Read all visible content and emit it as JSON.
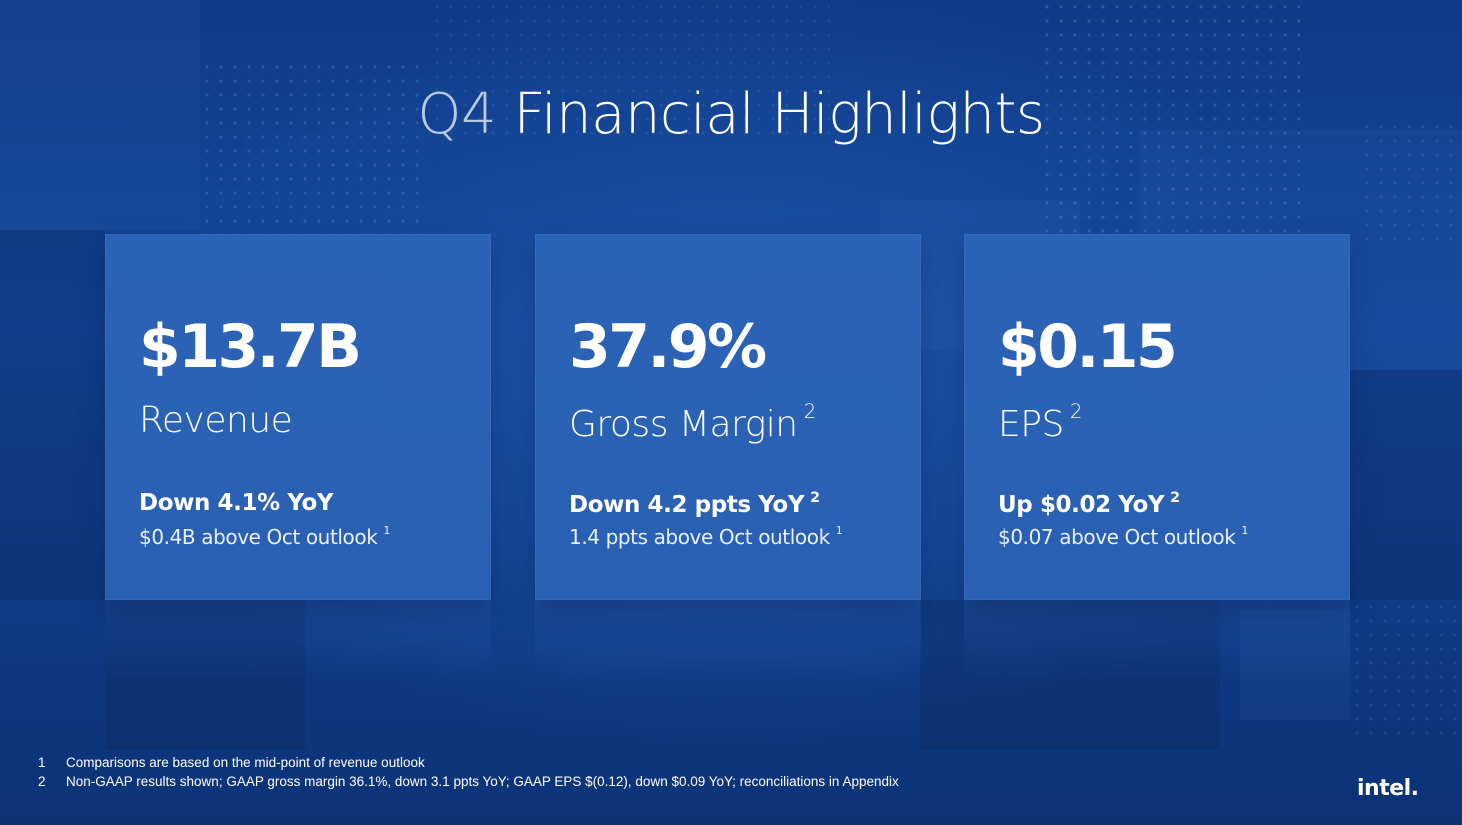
{
  "slide": {
    "title_prefix": "Q4",
    "title_rest": "Financial Highlights"
  },
  "cards": [
    {
      "metric": "$13.7B",
      "label": "Revenue",
      "label_sup": "",
      "change": "Down 4.1% YoY",
      "change_sup": "",
      "note": "$0.4B above Oct outlook",
      "note_sup": "1"
    },
    {
      "metric": "37.9%",
      "label": "Gross Margin",
      "label_sup": "2",
      "change": "Down 4.2 ppts YoY",
      "change_sup": "2",
      "note": "1.4 ppts above Oct outlook",
      "note_sup": "1"
    },
    {
      "metric": "$0.15",
      "label": "EPS",
      "label_sup": "2",
      "change": "Up $0.02 YoY",
      "change_sup": "2",
      "note": "$0.07 above Oct outlook",
      "note_sup": "1"
    }
  ],
  "footnotes": [
    {
      "num": "1",
      "text": "Comparisons are based on the mid-point of revenue outlook"
    },
    {
      "num": "2",
      "text": "Non-GAAP results shown; GAAP gross margin 36.1%, down 3.1 ppts YoY; GAAP EPS $(0.12), down $0.09 YoY; reconciliations in Appendix"
    }
  ],
  "logo": {
    "text": "intel."
  },
  "colors": {
    "background": "#0f3a86",
    "card": "#2a60b2",
    "title_prefix": "#b8c9e6",
    "text": "#ffffff"
  }
}
